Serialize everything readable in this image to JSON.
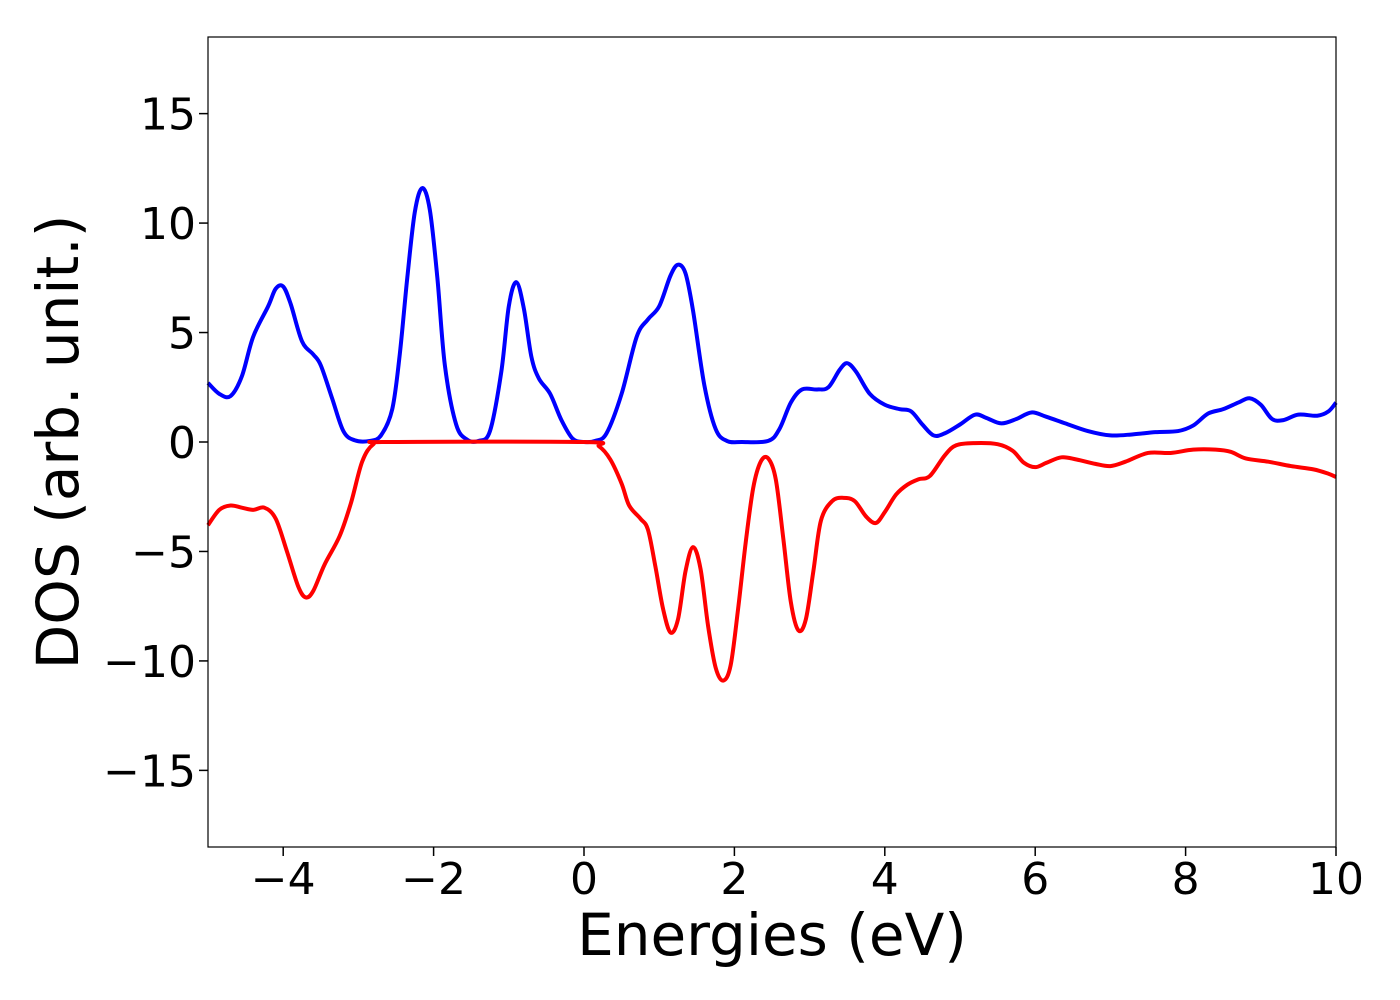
{
  "chart_data": {
    "type": "line",
    "title": "",
    "xlabel": "Energies (eV)",
    "ylabel": "DOS (arb. unit.)",
    "xlim": [
      -5,
      10
    ],
    "ylim": [
      -18.5,
      18.5
    ],
    "xticks": [
      -4,
      -2,
      0,
      2,
      4,
      6,
      8,
      10
    ],
    "xtick_labels": [
      "−4",
      "−2",
      "0",
      "2",
      "4",
      "6",
      "8",
      "10"
    ],
    "yticks": [
      15,
      10,
      5,
      0,
      -5,
      -10,
      -15
    ],
    "ytick_labels": [
      "15",
      "10",
      "5",
      "0",
      "−5",
      "−10",
      "−15"
    ],
    "grid": false,
    "legend": "none",
    "series": [
      {
        "color": "#0000ff",
        "points": [
          [
            -5.0,
            2.7
          ],
          [
            -4.85,
            2.2
          ],
          [
            -4.7,
            2.1
          ],
          [
            -4.55,
            3.0
          ],
          [
            -4.4,
            4.8
          ],
          [
            -4.2,
            6.2
          ],
          [
            -4.1,
            7.0
          ],
          [
            -4.0,
            7.1
          ],
          [
            -3.9,
            6.3
          ],
          [
            -3.75,
            4.6
          ],
          [
            -3.6,
            4.0
          ],
          [
            -3.5,
            3.5
          ],
          [
            -3.35,
            2.0
          ],
          [
            -3.2,
            0.5
          ],
          [
            -3.05,
            0.08
          ],
          [
            -2.85,
            0.05
          ],
          [
            -2.7,
            0.3
          ],
          [
            -2.55,
            1.5
          ],
          [
            -2.45,
            4.0
          ],
          [
            -2.35,
            7.5
          ],
          [
            -2.25,
            10.5
          ],
          [
            -2.15,
            11.6
          ],
          [
            -2.05,
            10.6
          ],
          [
            -1.95,
            7.5
          ],
          [
            -1.85,
            3.5
          ],
          [
            -1.7,
            0.8
          ],
          [
            -1.55,
            0.1
          ],
          [
            -1.4,
            0.05
          ],
          [
            -1.25,
            0.5
          ],
          [
            -1.1,
            3.2
          ],
          [
            -1.0,
            6.2
          ],
          [
            -0.9,
            7.3
          ],
          [
            -0.8,
            6.1
          ],
          [
            -0.7,
            3.9
          ],
          [
            -0.6,
            2.9
          ],
          [
            -0.45,
            2.2
          ],
          [
            -0.3,
            1.0
          ],
          [
            -0.15,
            0.15
          ],
          [
            0.0,
            0.0
          ],
          [
            0.15,
            0.05
          ],
          [
            0.3,
            0.4
          ],
          [
            0.5,
            2.2
          ],
          [
            0.7,
            4.8
          ],
          [
            0.85,
            5.6
          ],
          [
            1.0,
            6.2
          ],
          [
            1.15,
            7.6
          ],
          [
            1.25,
            8.1
          ],
          [
            1.35,
            7.7
          ],
          [
            1.45,
            6.0
          ],
          [
            1.6,
            2.6
          ],
          [
            1.75,
            0.6
          ],
          [
            1.9,
            0.05
          ],
          [
            2.1,
            0.0
          ],
          [
            2.45,
            0.05
          ],
          [
            2.6,
            0.6
          ],
          [
            2.75,
            1.8
          ],
          [
            2.9,
            2.4
          ],
          [
            3.1,
            2.4
          ],
          [
            3.25,
            2.5
          ],
          [
            3.4,
            3.3
          ],
          [
            3.5,
            3.6
          ],
          [
            3.62,
            3.2
          ],
          [
            3.8,
            2.2
          ],
          [
            4.0,
            1.7
          ],
          [
            4.2,
            1.5
          ],
          [
            4.35,
            1.4
          ],
          [
            4.5,
            0.8
          ],
          [
            4.65,
            0.3
          ],
          [
            4.8,
            0.4
          ],
          [
            5.0,
            0.8
          ],
          [
            5.2,
            1.25
          ],
          [
            5.35,
            1.1
          ],
          [
            5.55,
            0.85
          ],
          [
            5.75,
            1.05
          ],
          [
            5.95,
            1.35
          ],
          [
            6.15,
            1.15
          ],
          [
            6.4,
            0.85
          ],
          [
            6.7,
            0.5
          ],
          [
            7.0,
            0.3
          ],
          [
            7.3,
            0.35
          ],
          [
            7.6,
            0.45
          ],
          [
            7.9,
            0.5
          ],
          [
            8.1,
            0.75
          ],
          [
            8.3,
            1.3
          ],
          [
            8.5,
            1.5
          ],
          [
            8.7,
            1.8
          ],
          [
            8.85,
            2.0
          ],
          [
            9.0,
            1.7
          ],
          [
            9.15,
            1.05
          ],
          [
            9.3,
            1.0
          ],
          [
            9.5,
            1.25
          ],
          [
            9.75,
            1.2
          ],
          [
            9.9,
            1.4
          ],
          [
            10.0,
            1.8
          ]
        ]
      },
      {
        "color": "#ff0000",
        "points": [
          [
            -5.0,
            -3.8
          ],
          [
            -4.85,
            -3.1
          ],
          [
            -4.7,
            -2.9
          ],
          [
            -4.55,
            -3.0
          ],
          [
            -4.4,
            -3.1
          ],
          [
            -4.25,
            -3.0
          ],
          [
            -4.1,
            -3.5
          ],
          [
            -3.95,
            -5.0
          ],
          [
            -3.8,
            -6.6
          ],
          [
            -3.7,
            -7.1
          ],
          [
            -3.6,
            -6.8
          ],
          [
            -3.45,
            -5.6
          ],
          [
            -3.25,
            -4.3
          ],
          [
            -3.1,
            -2.8
          ],
          [
            -2.95,
            -0.9
          ],
          [
            -2.8,
            -0.1
          ],
          [
            -2.6,
            0.0
          ],
          [
            0.0,
            0.0
          ],
          [
            0.2,
            -0.2
          ],
          [
            0.35,
            -0.8
          ],
          [
            0.5,
            -1.9
          ],
          [
            0.6,
            -2.9
          ],
          [
            0.75,
            -3.5
          ],
          [
            0.85,
            -4.0
          ],
          [
            0.95,
            -5.7
          ],
          [
            1.05,
            -7.6
          ],
          [
            1.15,
            -8.7
          ],
          [
            1.25,
            -8.1
          ],
          [
            1.35,
            -5.9
          ],
          [
            1.45,
            -4.8
          ],
          [
            1.55,
            -5.8
          ],
          [
            1.65,
            -8.4
          ],
          [
            1.75,
            -10.3
          ],
          [
            1.85,
            -10.9
          ],
          [
            1.95,
            -10.2
          ],
          [
            2.05,
            -7.6
          ],
          [
            2.15,
            -4.6
          ],
          [
            2.25,
            -2.1
          ],
          [
            2.35,
            -0.9
          ],
          [
            2.45,
            -0.75
          ],
          [
            2.55,
            -1.7
          ],
          [
            2.65,
            -4.4
          ],
          [
            2.75,
            -7.3
          ],
          [
            2.85,
            -8.6
          ],
          [
            2.95,
            -8.1
          ],
          [
            3.05,
            -5.9
          ],
          [
            3.15,
            -3.6
          ],
          [
            3.3,
            -2.7
          ],
          [
            3.45,
            -2.55
          ],
          [
            3.6,
            -2.7
          ],
          [
            3.75,
            -3.4
          ],
          [
            3.88,
            -3.7
          ],
          [
            4.0,
            -3.2
          ],
          [
            4.15,
            -2.4
          ],
          [
            4.3,
            -1.95
          ],
          [
            4.45,
            -1.7
          ],
          [
            4.6,
            -1.55
          ],
          [
            4.8,
            -0.6
          ],
          [
            4.95,
            -0.15
          ],
          [
            5.2,
            -0.05
          ],
          [
            5.5,
            -0.1
          ],
          [
            5.7,
            -0.4
          ],
          [
            5.85,
            -0.95
          ],
          [
            6.0,
            -1.15
          ],
          [
            6.15,
            -0.95
          ],
          [
            6.35,
            -0.7
          ],
          [
            6.55,
            -0.8
          ],
          [
            6.8,
            -1.0
          ],
          [
            7.0,
            -1.1
          ],
          [
            7.2,
            -0.9
          ],
          [
            7.5,
            -0.5
          ],
          [
            7.8,
            -0.5
          ],
          [
            8.1,
            -0.35
          ],
          [
            8.4,
            -0.35
          ],
          [
            8.6,
            -0.45
          ],
          [
            8.8,
            -0.75
          ],
          [
            9.1,
            -0.9
          ],
          [
            9.4,
            -1.1
          ],
          [
            9.7,
            -1.25
          ],
          [
            9.9,
            -1.45
          ],
          [
            10.0,
            -1.6
          ]
        ]
      }
    ]
  }
}
